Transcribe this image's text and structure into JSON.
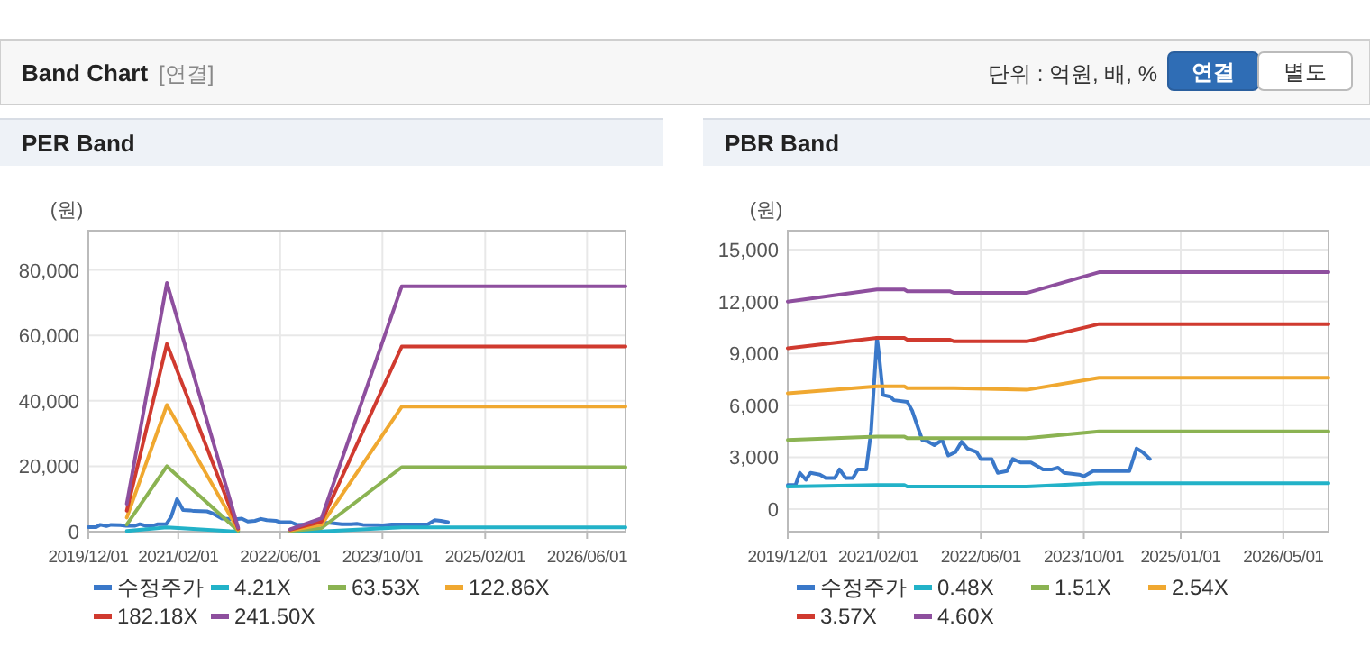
{
  "chart_data": [
    {
      "type": "other",
      "title": "Band Chart",
      "annotations": [
        "[연결]",
        "단위 : 억원, 배, %",
        "연결",
        "별도"
      ]
    },
    {
      "type": "line",
      "title": "PER Band",
      "ylabel": "(원)",
      "grid": true,
      "legend": "bottom",
      "xlim": [
        "2019-12-01",
        "2026-12-01"
      ],
      "ylim": [
        0,
        92000
      ],
      "xticks": [
        {
          "value": "2019-12-01",
          "label": "2019/12/01"
        },
        {
          "value": "2021-02-01",
          "label": "2021/02/01"
        },
        {
          "value": "2022-06-01",
          "label": "2022/06/01"
        },
        {
          "value": "2023-10-01",
          "label": "2023/10/01"
        },
        {
          "value": "2025-02-01",
          "label": "2025/02/01"
        },
        {
          "value": "2026-06-01",
          "label": "2026/06/01"
        }
      ],
      "yticks": [
        0,
        {
          "value": 20000,
          "label": "20,000"
        },
        {
          "value": 40000,
          "label": "40,000"
        },
        {
          "value": 60000,
          "label": "60,000"
        },
        {
          "value": 80000,
          "label": "80,000"
        }
      ],
      "series": [
        {
          "name": "수정주가",
          "color": "#3a78c9",
          "x": [
            "2019-12-01",
            "2020-01-07",
            "2020-01-27",
            "2020-02-25",
            "2020-03-18",
            "2020-05-01",
            "2020-05-29",
            "2020-07-11",
            "2020-08-02",
            "2020-08-31",
            "2020-10-04",
            "2020-10-27",
            "2020-12-06",
            "2020-12-29",
            "2021-01-26",
            "2021-02-04",
            "2021-02-24",
            "2021-03-30",
            "2021-04-16",
            "2021-06-18",
            "2021-07-11",
            "2021-08-28",
            "2021-09-26",
            "2021-10-24",
            "2021-11-30",
            "2021-12-29",
            "2022-02-01",
            "2022-03-02",
            "2022-03-30",
            "2022-05-12",
            "2022-06-01",
            "2022-07-22",
            "2022-08-20",
            "2022-10-02",
            "2022-10-30",
            "2022-12-06",
            "2023-01-24",
            "2023-03-22",
            "2023-05-04",
            "2023-06-01",
            "2023-06-30",
            "2023-09-09",
            "2023-10-02",
            "2023-11-14",
            "2024-01-01",
            "2024-05-03",
            "2024-06-06",
            "2024-07-05",
            "2024-08-08"
          ],
          "values": [
            1400,
            1400,
            2100,
            1700,
            2100,
            2000,
            1800,
            1800,
            2300,
            1800,
            1800,
            2300,
            2300,
            4500,
            9900,
            9000,
            6600,
            6500,
            6300,
            6200,
            5700,
            4000,
            3900,
            3700,
            4000,
            3100,
            3300,
            3900,
            3500,
            3300,
            2900,
            2900,
            2100,
            2200,
            2900,
            2700,
            2700,
            2300,
            2300,
            2400,
            2100,
            2000,
            1900,
            2200,
            2200,
            2200,
            3500,
            3300,
            2900
          ]
        },
        {
          "name": "4.21X",
          "color": "#22b2c8",
          "x": [
            "2020-06-01",
            "2020-12-09",
            "2021-11-13"
          ],
          "values": [
            200,
            1300,
            0
          ]
        },
        {
          "name": "63.53X",
          "color": "#8bb352",
          "x": [
            "2020-06-01",
            "2020-12-09",
            "2021-11-13"
          ],
          "values": [
            2200,
            20000,
            300
          ]
        },
        {
          "name": "122.86X",
          "color": "#f0a830",
          "x": [
            "2020-06-01",
            "2020-12-09",
            "2021-11-13"
          ],
          "values": [
            4300,
            38700,
            600
          ]
        },
        {
          "name": "182.18X",
          "color": "#d03a2f",
          "x": [
            "2020-06-01",
            "2020-12-09",
            "2021-11-13"
          ],
          "values": [
            6400,
            57400,
            900
          ]
        },
        {
          "name": "241.50X",
          "color": "#8e4f9e",
          "x": [
            "2020-06-01",
            "2020-12-09",
            "2021-11-13"
          ],
          "values": [
            8500,
            76000,
            1200
          ]
        },
        {
          "color": "#22b2c8",
          "x": [
            "2022-07-19",
            "2022-12-15",
            "2024-01-01",
            "2026-12-01"
          ],
          "values": [
            0,
            100,
            1300,
            1300
          ]
        },
        {
          "color": "#8bb352",
          "x": [
            "2022-07-19",
            "2022-12-15",
            "2024-01-01",
            "2026-12-01"
          ],
          "values": [
            200,
            1100,
            19700,
            19700
          ]
        },
        {
          "color": "#f0a830",
          "x": [
            "2022-07-19",
            "2022-12-15",
            "2024-01-01",
            "2026-12-01"
          ],
          "values": [
            400,
            2100,
            38200,
            38200
          ]
        },
        {
          "color": "#d03a2f",
          "x": [
            "2022-07-19",
            "2022-12-15",
            "2024-01-01",
            "2026-12-01"
          ],
          "values": [
            600,
            3100,
            56600,
            56600
          ]
        },
        {
          "color": "#8e4f9e",
          "x": [
            "2022-07-19",
            "2022-12-15",
            "2024-01-01",
            "2026-12-01"
          ],
          "values": [
            700,
            4100,
            75000,
            75000
          ]
        }
      ]
    },
    {
      "type": "line",
      "title": "PBR Band",
      "ylabel": "(원)",
      "grid": true,
      "legend": "bottom",
      "xlim": [
        "2019-12-01",
        "2026-12-01"
      ],
      "ylim": [
        -1300,
        16100
      ],
      "xticks": [
        {
          "value": "2019-12-01",
          "label": "2019/12/01"
        },
        {
          "value": "2021-02-01",
          "label": "2021/02/01"
        },
        {
          "value": "2022-06-01",
          "label": "2022/06/01"
        },
        {
          "value": "2023-10-01",
          "label": "2023/10/01"
        },
        {
          "value": "2025-01-01",
          "label": "2025/01/01"
        },
        {
          "value": "2026-05-01",
          "label": "2026/05/01"
        }
      ],
      "yticks": [
        0,
        {
          "value": 3000,
          "label": "3,000"
        },
        {
          "value": 6000,
          "label": "6,000"
        },
        {
          "value": 9000,
          "label": "9,000"
        },
        {
          "value": 12000,
          "label": "12,000"
        },
        {
          "value": 15000,
          "label": "15,000"
        }
      ],
      "series": [
        {
          "name": "수정주가",
          "color": "#3a78c9",
          "x": [
            "2019-12-01",
            "2020-01-07",
            "2020-01-27",
            "2020-02-25",
            "2020-03-18",
            "2020-05-01",
            "2020-05-29",
            "2020-07-11",
            "2020-08-02",
            "2020-08-31",
            "2020-10-04",
            "2020-10-27",
            "2020-12-06",
            "2020-12-29",
            "2021-01-26",
            "2021-02-04",
            "2021-02-24",
            "2021-03-30",
            "2021-04-16",
            "2021-06-18",
            "2021-07-11",
            "2021-08-28",
            "2021-09-26",
            "2021-10-24",
            "2021-11-30",
            "2021-12-29",
            "2022-02-01",
            "2022-03-02",
            "2022-03-30",
            "2022-05-12",
            "2022-06-01",
            "2022-07-22",
            "2022-08-20",
            "2022-10-02",
            "2022-10-30",
            "2022-12-06",
            "2023-01-24",
            "2023-03-22",
            "2023-05-04",
            "2023-06-01",
            "2023-06-30",
            "2023-09-09",
            "2023-10-02",
            "2023-11-14",
            "2024-01-01",
            "2024-05-03",
            "2024-06-06",
            "2024-07-05",
            "2024-08-08"
          ],
          "values": [
            1400,
            1400,
            2100,
            1700,
            2100,
            2000,
            1800,
            1800,
            2300,
            1800,
            1800,
            2300,
            2300,
            4500,
            9900,
            9000,
            6600,
            6500,
            6300,
            6200,
            5700,
            4000,
            3900,
            3700,
            4000,
            3100,
            3300,
            3900,
            3500,
            3300,
            2900,
            2900,
            2100,
            2200,
            2900,
            2700,
            2700,
            2300,
            2300,
            2400,
            2100,
            2000,
            1900,
            2200,
            2200,
            2200,
            3500,
            3300,
            2900
          ]
        },
        {
          "name": "0.48X",
          "color": "#22b2c8",
          "x": [
            "2019-12-01",
            "2021-01-26",
            "2021-06-04",
            "2021-06-18",
            "2022-01-04",
            "2022-01-26",
            "2023-01-04",
            "2023-12-12",
            "2026-12-01"
          ],
          "values": [
            1300,
            1400,
            1400,
            1300,
            1300,
            1300,
            1300,
            1500,
            1500
          ]
        },
        {
          "name": "1.51X",
          "color": "#8bb352",
          "x": [
            "2019-12-01",
            "2021-01-26",
            "2021-06-04",
            "2021-06-18",
            "2022-01-04",
            "2022-01-26",
            "2023-01-04",
            "2023-12-12",
            "2026-12-01"
          ],
          "values": [
            4000,
            4200,
            4200,
            4100,
            4100,
            4100,
            4100,
            4500,
            4500
          ]
        },
        {
          "name": "2.54X",
          "color": "#f0a830",
          "x": [
            "2019-12-01",
            "2021-01-26",
            "2021-06-04",
            "2021-06-18",
            "2022-01-04",
            "2022-01-26",
            "2023-01-04",
            "2023-12-12",
            "2026-12-01"
          ],
          "values": [
            6700,
            7100,
            7100,
            7000,
            7000,
            7000,
            6900,
            7600,
            7600
          ]
        },
        {
          "name": "3.57X",
          "color": "#d03a2f",
          "x": [
            "2019-12-01",
            "2021-01-26",
            "2021-06-04",
            "2021-06-18",
            "2022-01-04",
            "2022-01-26",
            "2023-01-04",
            "2023-12-12",
            "2026-12-01"
          ],
          "values": [
            9300,
            9900,
            9900,
            9800,
            9800,
            9700,
            9700,
            10700,
            10700
          ]
        },
        {
          "name": "4.60X",
          "color": "#8e4f9e",
          "x": [
            "2019-12-01",
            "2021-01-26",
            "2021-06-04",
            "2021-06-18",
            "2022-01-04",
            "2022-01-26",
            "2023-01-04",
            "2023-12-12",
            "2026-12-01"
          ],
          "values": [
            12000,
            12700,
            12700,
            12600,
            12600,
            12500,
            12500,
            13700,
            13700
          ]
        }
      ]
    }
  ]
}
